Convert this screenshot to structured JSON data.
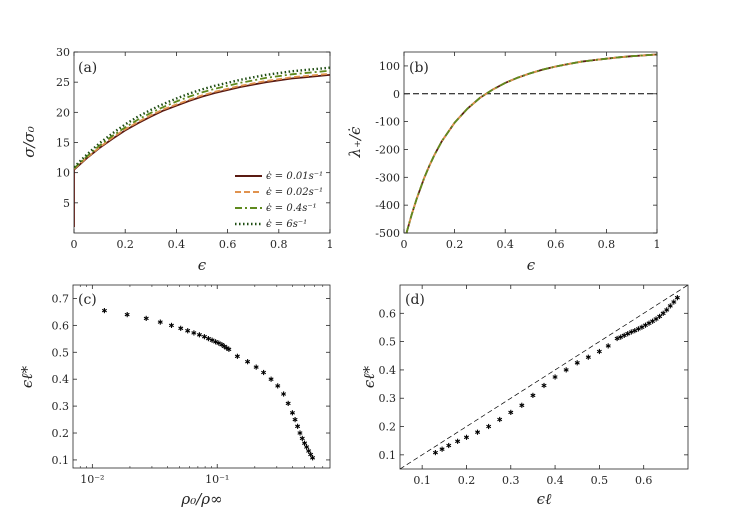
{
  "chart_data": [
    {
      "type": "line",
      "panel_label": "(a)",
      "xlabel": "ϵ",
      "ylabel": "σ/σ₀",
      "xlim": [
        0,
        1
      ],
      "ylim": [
        0,
        30
      ],
      "xticks": [
        0,
        0.2,
        0.4,
        0.6,
        0.8,
        1
      ],
      "xtick_labels": [
        "0",
        "0.2",
        "0.4",
        "0.6",
        "0.8",
        "1"
      ],
      "yticks": [
        5,
        10,
        15,
        20,
        25,
        30
      ],
      "ytick_labels": [
        "5",
        "10",
        "15",
        "20",
        "25",
        "30"
      ],
      "legend_position": "center-right",
      "x": [
        0,
        0.05,
        0.1,
        0.15,
        0.2,
        0.25,
        0.3,
        0.35,
        0.4,
        0.45,
        0.5,
        0.55,
        0.6,
        0.65,
        0.7,
        0.75,
        0.8,
        0.85,
        0.9,
        0.95,
        1.0
      ],
      "series": [
        {
          "name": "ϵ̇ = 0.01s⁻¹",
          "label": "$\\dot{\\epsilon} = 0.01s^{-1}$",
          "legend_text": "ϵ̇ = 0.01s⁻¹",
          "color": "#5a1a12",
          "dash": "solid",
          "start_y": 1.0,
          "values": [
            10.5,
            12.4,
            14.1,
            15.6,
            17.0,
            18.2,
            19.3,
            20.3,
            21.1,
            21.9,
            22.6,
            23.2,
            23.7,
            24.2,
            24.6,
            25.0,
            25.3,
            25.6,
            25.8,
            26.0,
            26.2
          ]
        },
        {
          "name": "ϵ̇ = 0.02s⁻¹",
          "label": "$\\dot{\\epsilon} = 0.02s^{-1}$",
          "legend_text": "ϵ̇ = 0.02s⁻¹",
          "color": "#e0924e",
          "dash": "dashed",
          "values": [
            10.6,
            12.5,
            14.2,
            15.8,
            17.2,
            18.4,
            19.5,
            20.5,
            21.3,
            22.1,
            22.8,
            23.4,
            23.9,
            24.4,
            24.8,
            25.2,
            25.5,
            25.8,
            26.0,
            26.2,
            26.4
          ]
        },
        {
          "name": "ϵ̇ = 0.4s⁻¹",
          "label": "$\\dot{\\epsilon} = 0.4s^{-1}$",
          "legend_text": "ϵ̇ = 0.4s⁻¹",
          "color": "#5f8a1e",
          "dash": "dashdot",
          "values": [
            10.7,
            12.7,
            14.5,
            16.1,
            17.5,
            18.8,
            19.9,
            20.9,
            21.8,
            22.6,
            23.3,
            23.9,
            24.4,
            24.9,
            25.3,
            25.7,
            26.0,
            26.3,
            26.5,
            26.7,
            26.9
          ]
        },
        {
          "name": "ϵ̇ = 6s⁻¹",
          "label": "$\\dot{\\epsilon} = 6s^{-1}$",
          "legend_text": "ϵ̇ = 6s⁻¹",
          "color": "#1e4d12",
          "dash": "dotted",
          "values": [
            10.9,
            13.0,
            14.9,
            16.5,
            18.0,
            19.3,
            20.4,
            21.4,
            22.3,
            23.1,
            23.8,
            24.4,
            24.9,
            25.4,
            25.8,
            26.2,
            26.5,
            26.8,
            27.0,
            27.2,
            27.4
          ]
        }
      ]
    },
    {
      "type": "line",
      "panel_label": "(b)",
      "xlabel": "ϵ",
      "ylabel": "λ₊/ϵ̇",
      "xlim": [
        0,
        1
      ],
      "ylim": [
        -500,
        150
      ],
      "xticks": [
        0,
        0.2,
        0.4,
        0.6,
        0.8,
        1
      ],
      "xtick_labels": [
        "0",
        "0.2",
        "0.4",
        "0.6",
        "0.8",
        "1"
      ],
      "yticks": [
        -500,
        -400,
        -300,
        -200,
        -100,
        0,
        100
      ],
      "ytick_labels": [
        "-500",
        "-400",
        "-300",
        "-200",
        "-100",
        "0",
        "100"
      ],
      "reference_line": {
        "y": 0,
        "style": "dashed",
        "color": "#000000"
      },
      "x": [
        0.01,
        0.03,
        0.05,
        0.08,
        0.1,
        0.12,
        0.15,
        0.2,
        0.25,
        0.3,
        0.35,
        0.4,
        0.45,
        0.5,
        0.55,
        0.6,
        0.65,
        0.7,
        0.75,
        0.8,
        0.85,
        0.9,
        0.95,
        1.0
      ],
      "series": [
        {
          "name": "ϵ̇ = 0.01s⁻¹",
          "color": "#5a1a12",
          "dash": "solid",
          "values": [
            -500,
            -435,
            -378,
            -302,
            -259,
            -220,
            -170,
            -104,
            -54,
            -15,
            15,
            39,
            58,
            74,
            87,
            98,
            107,
            115,
            121,
            126,
            131,
            135,
            138,
            141
          ]
        },
        {
          "name": "ϵ̇ = 0.02s⁻¹",
          "color": "#e0924e",
          "dash": "dashed",
          "values": [
            -500,
            -435,
            -378,
            -302,
            -259,
            -220,
            -170,
            -104,
            -54,
            -15,
            15,
            39,
            58,
            74,
            87,
            98,
            107,
            115,
            121,
            126,
            131,
            135,
            138,
            141
          ]
        },
        {
          "name": "ϵ̇ = 0.4s⁻¹",
          "color": "#5f8a1e",
          "dash": "dashdot",
          "values": [
            -500,
            -435,
            -378,
            -302,
            -259,
            -220,
            -170,
            -104,
            -54,
            -15,
            15,
            39,
            58,
            74,
            87,
            98,
            107,
            115,
            121,
            126,
            131,
            135,
            138,
            141
          ]
        }
      ]
    },
    {
      "type": "scatter",
      "panel_label": "(c)",
      "xlabel": "ρ₀/ρ∞",
      "ylabel": "ϵℓ*",
      "xscale": "log",
      "xlim": [
        0.007,
        0.8
      ],
      "ylim": [
        0.07,
        0.75
      ],
      "xticks": [
        0.01,
        0.1
      ],
      "xtick_labels": [
        "10⁻²",
        "10⁻¹"
      ],
      "yticks": [
        0.1,
        0.2,
        0.3,
        0.4,
        0.5,
        0.6,
        0.7
      ],
      "ytick_labels": [
        "0.1",
        "0.2",
        "0.3",
        "0.4",
        "0.5",
        "0.6",
        "0.7"
      ],
      "marker": "*",
      "x": [
        0.0125,
        0.019,
        0.027,
        0.035,
        0.043,
        0.051,
        0.058,
        0.065,
        0.072,
        0.079,
        0.085,
        0.091,
        0.097,
        0.103,
        0.109,
        0.114,
        0.119,
        0.124,
        0.145,
        0.175,
        0.205,
        0.235,
        0.27,
        0.305,
        0.34,
        0.37,
        0.4,
        0.42,
        0.44,
        0.46,
        0.48,
        0.5,
        0.52,
        0.54,
        0.56,
        0.58
      ],
      "y": [
        0.655,
        0.64,
        0.626,
        0.612,
        0.6,
        0.589,
        0.58,
        0.572,
        0.565,
        0.558,
        0.551,
        0.545,
        0.539,
        0.534,
        0.528,
        0.522,
        0.516,
        0.511,
        0.485,
        0.465,
        0.445,
        0.425,
        0.4,
        0.375,
        0.345,
        0.31,
        0.275,
        0.25,
        0.225,
        0.2,
        0.18,
        0.162,
        0.148,
        0.133,
        0.12,
        0.108
      ]
    },
    {
      "type": "scatter",
      "panel_label": "(d)",
      "xlabel": "ϵℓ",
      "ylabel": "ϵℓ*",
      "xlim": [
        0.05,
        0.7
      ],
      "ylim": [
        0.05,
        0.7
      ],
      "xticks": [
        0.1,
        0.2,
        0.3,
        0.4,
        0.5,
        0.6
      ],
      "xtick_labels": [
        "0.1",
        "0.2",
        "0.3",
        "0.4",
        "0.5",
        "0.6"
      ],
      "yticks": [
        0.1,
        0.2,
        0.3,
        0.4,
        0.5,
        0.6
      ],
      "ytick_labels": [
        "0.1",
        "0.2",
        "0.3",
        "0.4",
        "0.5",
        "0.6"
      ],
      "marker": "*",
      "reference_line": {
        "type": "identity",
        "style": "dashed",
        "color": "#000000"
      },
      "x": [
        0.13,
        0.145,
        0.16,
        0.18,
        0.2,
        0.225,
        0.25,
        0.275,
        0.3,
        0.325,
        0.35,
        0.375,
        0.4,
        0.425,
        0.45,
        0.475,
        0.5,
        0.52,
        0.54,
        0.548,
        0.556,
        0.564,
        0.572,
        0.58,
        0.588,
        0.596,
        0.604,
        0.612,
        0.62,
        0.628,
        0.636,
        0.644,
        0.652,
        0.66,
        0.668,
        0.676
      ],
      "y": [
        0.108,
        0.12,
        0.133,
        0.148,
        0.162,
        0.18,
        0.2,
        0.225,
        0.25,
        0.275,
        0.31,
        0.345,
        0.375,
        0.4,
        0.425,
        0.445,
        0.465,
        0.485,
        0.511,
        0.516,
        0.522,
        0.528,
        0.534,
        0.539,
        0.545,
        0.551,
        0.558,
        0.565,
        0.572,
        0.58,
        0.589,
        0.6,
        0.612,
        0.626,
        0.64,
        0.655
      ]
    }
  ]
}
